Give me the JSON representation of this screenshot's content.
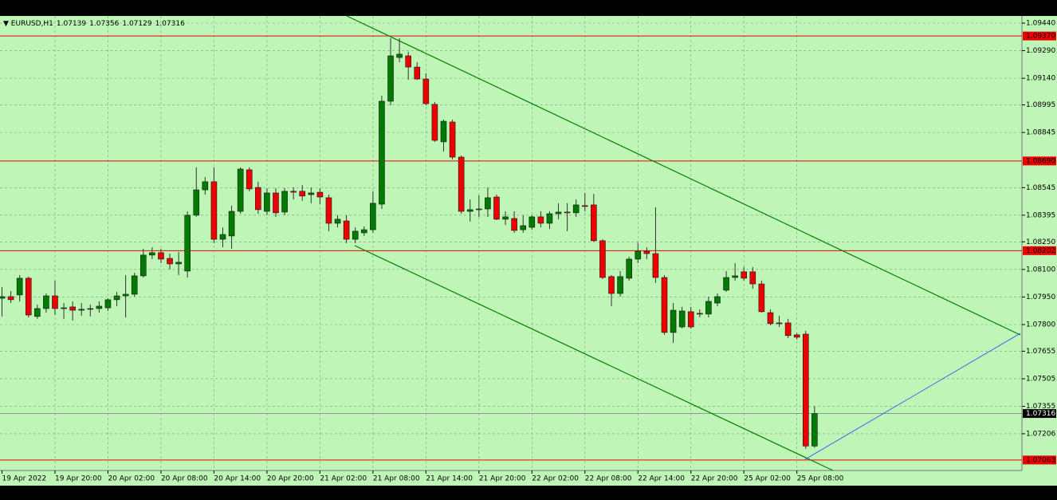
{
  "chart_data": {
    "type": "candlestick",
    "symbol": "EURUSD,H1",
    "categories": [
      "19 Apr 2022",
      null,
      null,
      null,
      null,
      null,
      "19 Apr 20:00",
      null,
      null,
      null,
      null,
      null,
      "20 Apr 02:00",
      null,
      null,
      null,
      null,
      null,
      "20 Apr 08:00",
      null,
      null,
      null,
      null,
      null,
      "20 Apr 14:00",
      null,
      null,
      null,
      null,
      null,
      "20 Apr 20:00",
      null,
      null,
      null,
      null,
      null,
      "21 Apr 02:00",
      null,
      null,
      null,
      null,
      null,
      "21 Apr 08:00",
      null,
      null,
      null,
      null,
      null,
      "21 Apr 14:00",
      null,
      null,
      null,
      null,
      null,
      "21 Apr 20:00",
      null,
      null,
      null,
      null,
      null,
      "22 Apr 02:00",
      null,
      null,
      null,
      null,
      null,
      "22 Apr 08:00",
      null,
      null,
      null,
      null,
      null,
      "22 Apr 14:00",
      null,
      null,
      null,
      null,
      null,
      "22 Apr 20:00",
      null,
      null,
      null,
      null,
      null,
      "25 Apr 02:00",
      null,
      null,
      null,
      null,
      null,
      "25 Apr 08:00",
      null,
      null
    ],
    "open": [
      1.07943,
      1.07952,
      1.07961,
      1.08052,
      1.07844,
      1.07887,
      1.07956,
      1.07887,
      1.07896,
      1.07878,
      1.07883,
      1.07887,
      1.07891,
      1.07935,
      1.07956,
      1.07965,
      1.08065,
      1.08178,
      1.08191,
      1.0816,
      1.0813,
      1.08091,
      1.08395,
      1.08533,
      1.08577,
      1.08264,
      1.08282,
      1.08416,
      1.08642,
      1.08546,
      1.08416,
      1.08516,
      1.08412,
      1.08525,
      1.08525,
      1.08507,
      1.0852,
      1.0849,
      1.08351,
      1.08364,
      1.08264,
      1.08299,
      1.08316,
      1.08455,
      1.09015,
      1.09253,
      1.09262,
      1.09201,
      1.09136,
      1.08998,
      1.08794,
      1.08902,
      1.08711,
      1.08416,
      1.08425,
      1.08429,
      1.08494,
      1.08373,
      1.08377,
      1.08316,
      1.08329,
      1.08386,
      1.08351,
      1.08403,
      1.08412,
      1.08408,
      1.08447,
      1.08451,
      1.08256,
      1.08061,
      1.07969,
      1.08052,
      1.08156,
      1.08199,
      1.08186,
      1.08056,
      1.07757,
      1.07787,
      1.0787,
      1.07861,
      1.07857,
      1.07917,
      1.07987,
      1.08056,
      1.08087,
      1.08087,
      1.08021,
      1.07865,
      1.07809,
      1.07809,
      1.07744,
      1.07748,
      1.07139
    ],
    "high": [
      1.08004,
      1.07982,
      1.08069,
      1.08061,
      1.07909,
      1.07969,
      1.08039,
      1.07917,
      1.07926,
      1.07917,
      1.07909,
      1.07926,
      1.07943,
      1.07978,
      1.08069,
      1.08082,
      1.08212,
      1.08221,
      1.08212,
      1.08186,
      1.08195,
      1.08416,
      1.08655,
      1.08603,
      1.08655,
      1.08329,
      1.08447,
      1.08655,
      1.08655,
      1.08577,
      1.08542,
      1.08542,
      1.08542,
      1.08546,
      1.08559,
      1.08546,
      1.08542,
      1.08507,
      1.08395,
      1.08395,
      1.08329,
      1.08334,
      1.08525,
      1.09045,
      1.09358,
      1.09358,
      1.09284,
      1.09227,
      1.09167,
      1.09011,
      1.08915,
      1.08915,
      1.0872,
      1.08481,
      1.08503,
      1.08546,
      1.08507,
      1.08416,
      1.08416,
      1.08395,
      1.08395,
      1.08416,
      1.08416,
      1.0846,
      1.0846,
      1.08481,
      1.08516,
      1.08511,
      1.08264,
      1.08069,
      1.08091,
      1.08169,
      1.08243,
      1.08221,
      1.08438,
      1.08069,
      1.07917,
      1.07896,
      1.07896,
      1.07883,
      1.07952,
      1.07969,
      1.08091,
      1.08134,
      1.08113,
      1.08113,
      1.08039,
      1.07883,
      1.07848,
      1.07831,
      1.07753,
      1.07766,
      1.07356
    ],
    "low": [
      1.07844,
      1.07917,
      1.07926,
      1.07839,
      1.07831,
      1.07865,
      1.07852,
      1.07831,
      1.07822,
      1.07848,
      1.07844,
      1.07865,
      1.07874,
      1.079,
      1.07839,
      1.07952,
      1.08056,
      1.08156,
      1.08134,
      1.081,
      1.08069,
      1.08056,
      1.08386,
      1.08507,
      1.08243,
      1.08221,
      1.08212,
      1.08403,
      1.08525,
      1.08403,
      1.08395,
      1.08386,
      1.08395,
      1.08481,
      1.08473,
      1.0846,
      1.08455,
      1.08308,
      1.08329,
      1.08243,
      1.08243,
      1.08282,
      1.08299,
      1.08429,
      1.08993,
      1.09227,
      1.09132,
      1.09132,
      1.08993,
      1.08794,
      1.08742,
      1.08698,
      1.08403,
      1.0836,
      1.08386,
      1.08386,
      1.08369,
      1.08342,
      1.08299,
      1.08299,
      1.08316,
      1.08329,
      1.08321,
      1.08373,
      1.08308,
      1.08386,
      1.08416,
      1.08251,
      1.08048,
      1.079,
      1.07952,
      1.08039,
      1.08134,
      1.08156,
      1.08026,
      1.07744,
      1.077,
      1.07779,
      1.07779,
      1.07839,
      1.07839,
      1.079,
      1.07978,
      1.08039,
      1.08039,
      1.07995,
      1.07865,
      1.07796,
      1.07787,
      1.07726,
      1.07718,
      1.07125,
      1.07129
    ],
    "close": [
      1.07952,
      1.07935,
      1.08052,
      1.07852,
      1.07887,
      1.07956,
      1.07887,
      1.07891,
      1.07878,
      1.07883,
      1.07887,
      1.079,
      1.07935,
      1.07956,
      1.07965,
      1.08065,
      1.08178,
      1.08191,
      1.08156,
      1.0813,
      1.08139,
      1.08395,
      1.08533,
      1.08577,
      1.08264,
      1.0829,
      1.08416,
      1.08646,
      1.08538,
      1.08425,
      1.08516,
      1.08408,
      1.08525,
      1.0852,
      1.08499,
      1.08516,
      1.08494,
      1.08351,
      1.08373,
      1.08264,
      1.08308,
      1.08316,
      1.0846,
      1.09015,
      1.09262,
      1.09271,
      1.09201,
      1.09136,
      1.09002,
      1.08802,
      1.08906,
      1.08711,
      1.08416,
      1.08425,
      1.08429,
      1.0849,
      1.08373,
      1.08386,
      1.08312,
      1.08338,
      1.08386,
      1.08351,
      1.08403,
      1.08412,
      1.08408,
      1.08451,
      1.08445,
      1.08256,
      1.08056,
      1.07969,
      1.08061,
      1.08156,
      1.08199,
      1.08186,
      1.08056,
      1.07757,
      1.07878,
      1.07874,
      1.07787,
      1.07857,
      1.07926,
      1.07952,
      1.08056,
      1.08065,
      1.08052,
      1.08021,
      1.0787,
      1.07805,
      1.07805,
      1.0774,
      1.07731,
      1.07139,
      1.07316
    ],
    "up_color": "#007a00",
    "down_color": "#ee0000",
    "level_color": "#ee0000",
    "ylim": [
      1.07006,
      1.09479
    ],
    "yticks": [
      {
        "value": 1.0944,
        "label": "1.09440"
      },
      {
        "value": 1.0929,
        "label": "1.09290"
      },
      {
        "value": 1.0914,
        "label": "1.09140"
      },
      1.08995,
      1.08845,
      1.08545,
      1.08395,
      {
        "value": 1.0825,
        "label": "1.08250"
      },
      {
        "value": 1.081,
        "label": "1.08100"
      },
      {
        "value": 1.0795,
        "label": "1.07950"
      },
      {
        "value": 1.078,
        "label": "1.07800"
      },
      1.07655,
      1.07505,
      1.07355,
      1.07206
    ],
    "levels": [
      {
        "value": 1.0937,
        "label": "1.09370"
      },
      {
        "value": 1.0869,
        "label": "1.08690"
      },
      {
        "value": 1.08202,
        "label": "1.08202"
      },
      {
        "value": 1.07063,
        "label": "1.07063"
      }
    ],
    "grid": true
  }
}
